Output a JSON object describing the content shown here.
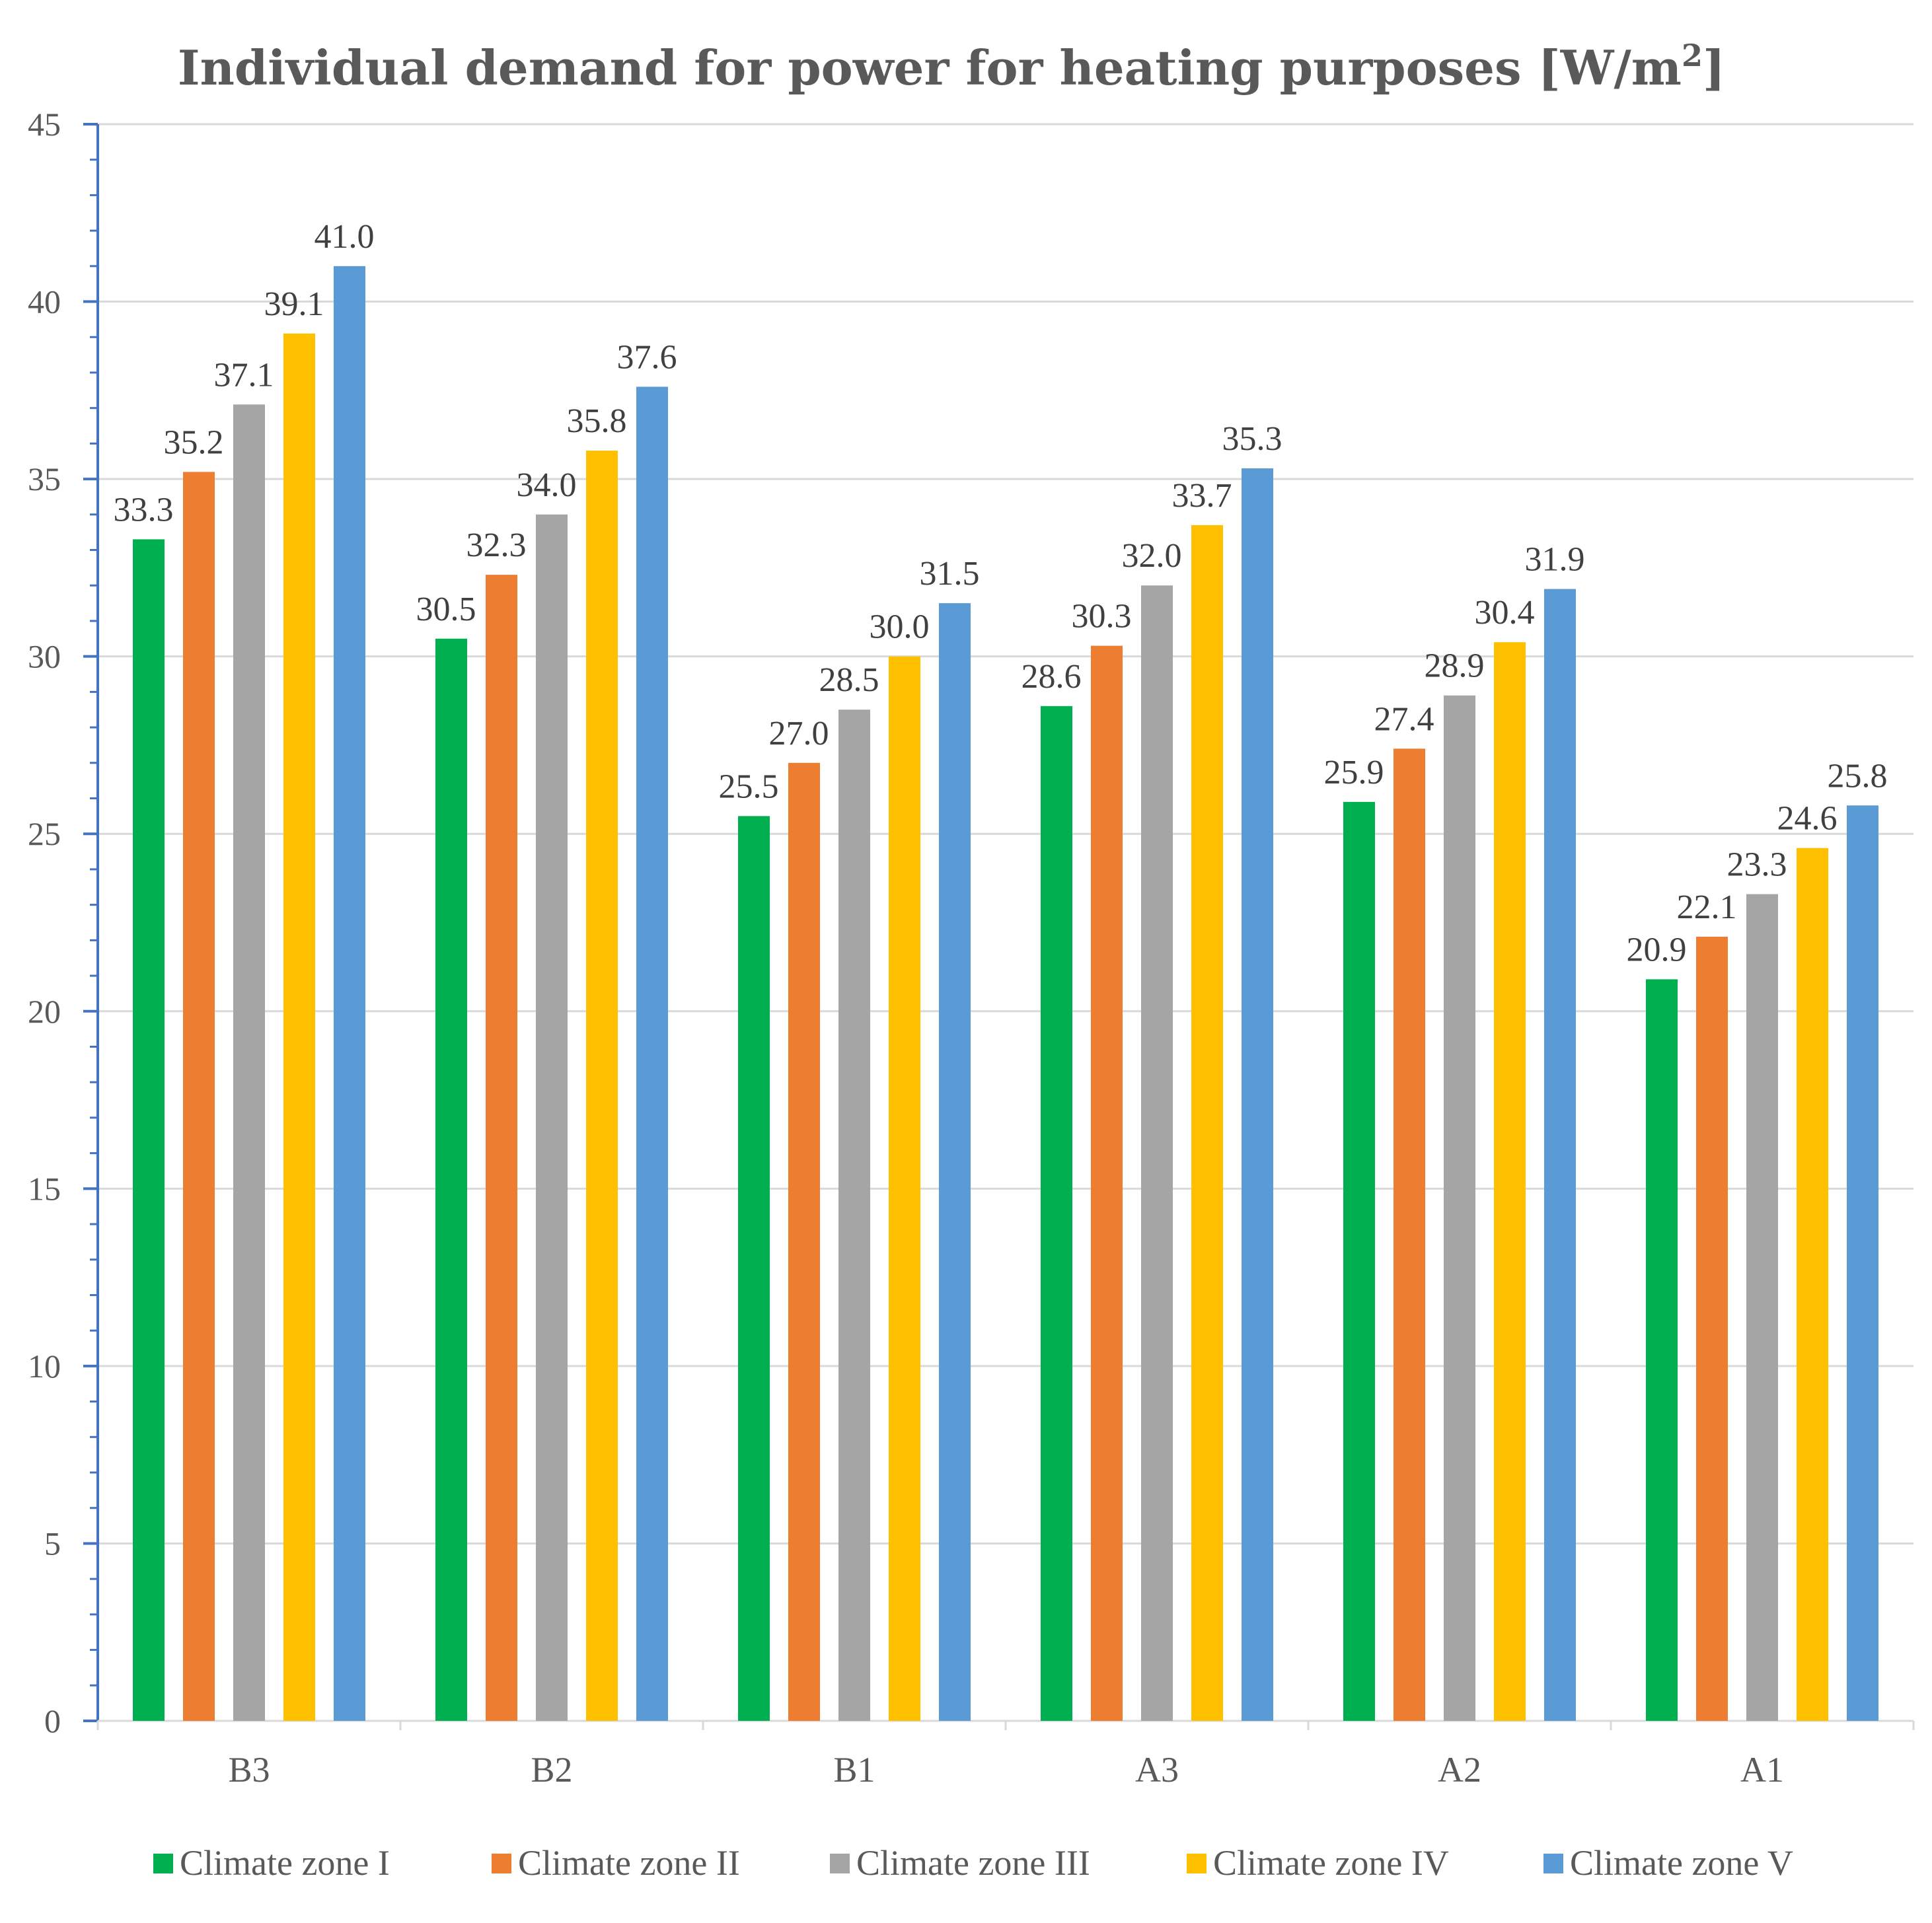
{
  "chart_data": {
    "type": "bar",
    "title": "Individual demand for power for heating purposes [W/m",
    "title_superscript": "2",
    "title_suffix": "]",
    "xlabel": "",
    "ylabel": "",
    "ylim": [
      0,
      45
    ],
    "yticks": [
      0,
      5,
      10,
      15,
      20,
      25,
      30,
      35,
      40,
      45
    ],
    "grid": true,
    "legend_position": "bottom",
    "categories": [
      "B3",
      "B2",
      "B1",
      "A3",
      "A2",
      "A1"
    ],
    "series": [
      {
        "name": "Climate zone I",
        "color": "#00b050",
        "values": [
          33.3,
          30.5,
          25.5,
          28.6,
          25.9,
          20.9
        ],
        "labels": [
          "33.3",
          "30.5",
          "25.5",
          "28.6",
          "25.9",
          "20.9"
        ]
      },
      {
        "name": "Climate zone II",
        "color": "#ed7d31",
        "values": [
          35.2,
          32.3,
          27.0,
          30.3,
          27.4,
          22.1
        ],
        "labels": [
          "35.2",
          "32.3",
          "27.0",
          "30.3",
          "27.4",
          "22.1"
        ]
      },
      {
        "name": "Climate zone III",
        "color": "#a5a5a5",
        "values": [
          37.1,
          34.0,
          28.5,
          32.0,
          28.9,
          23.3
        ],
        "labels": [
          "37.1",
          "34.0",
          "28.5",
          "32.0",
          "28.9",
          "23.3"
        ]
      },
      {
        "name": "Climate zone IV",
        "color": "#ffc000",
        "values": [
          39.1,
          35.8,
          30.0,
          33.7,
          30.4,
          24.6
        ],
        "labels": [
          "39.1",
          "35.8",
          "30.0",
          "33.7",
          "30.4",
          "24.6"
        ]
      },
      {
        "name": "Climate zone V",
        "color": "#5b9bd5",
        "values": [
          41.0,
          37.6,
          31.5,
          35.3,
          31.9,
          25.8
        ],
        "labels": [
          "41.0",
          "37.6",
          "31.5",
          "35.3",
          "31.9",
          "25.8"
        ]
      }
    ]
  }
}
